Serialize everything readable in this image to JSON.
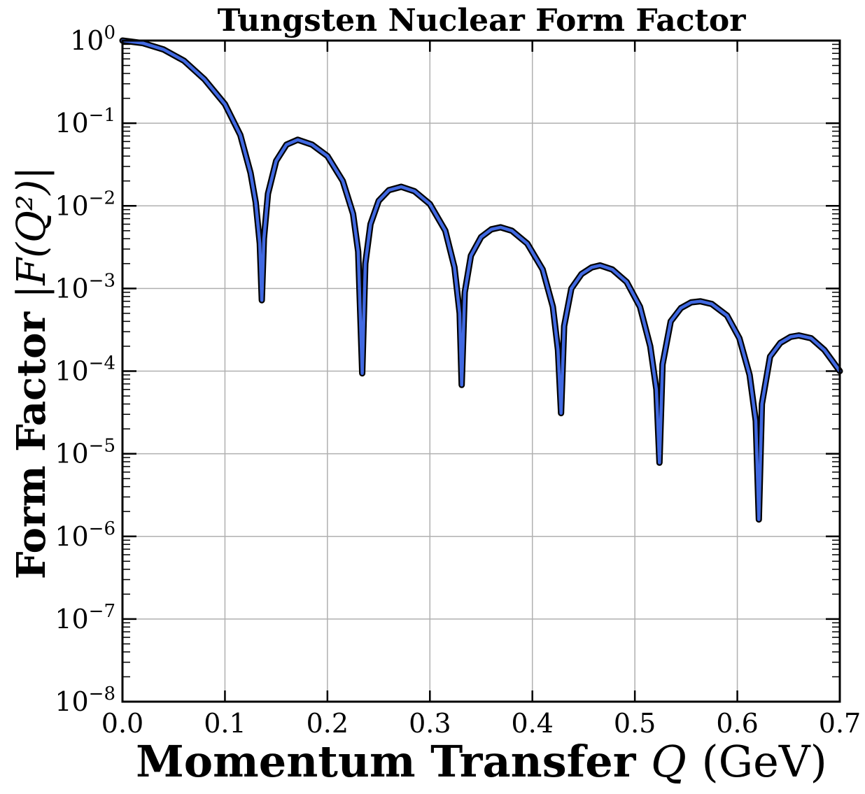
{
  "chart_data": {
    "type": "line",
    "title": "Tungsten Nuclear Form Factor",
    "xlabel": "Momentum Transfer",
    "xlabel_symbol": "Q",
    "xlabel_unit": "(GeV)",
    "ylabel": "Form Factor",
    "ylabel_symbol": "|F(Q²)|",
    "xlim": [
      0.0,
      0.7
    ],
    "ylim": [
      1e-08,
      1
    ],
    "yscale": "log",
    "grid": true,
    "xticks": [
      "0.0",
      "0.1",
      "0.2",
      "0.3",
      "0.4",
      "0.5",
      "0.6",
      "0.7"
    ],
    "yticks": [
      {
        "base": "10",
        "exp": "0"
      },
      {
        "base": "10",
        "exp": "−1"
      },
      {
        "base": "10",
        "exp": "−2"
      },
      {
        "base": "10",
        "exp": "−3"
      },
      {
        "base": "10",
        "exp": "−4"
      },
      {
        "base": "10",
        "exp": "−5"
      },
      {
        "base": "10",
        "exp": "−6"
      },
      {
        "base": "10",
        "exp": "−7"
      },
      {
        "base": "10",
        "exp": "−8"
      }
    ],
    "series": [
      {
        "color": "#4169e1",
        "edge_color": "#000000",
        "points": [
          [
            0.0,
            1.0
          ],
          [
            0.02,
            0.93
          ],
          [
            0.04,
            0.78
          ],
          [
            0.06,
            0.57
          ],
          [
            0.08,
            0.34
          ],
          [
            0.1,
            0.17
          ],
          [
            0.115,
            0.072
          ],
          [
            0.125,
            0.025
          ],
          [
            0.13,
            0.011
          ],
          [
            0.134,
            0.0035
          ],
          [
            0.136,
            0.00072
          ],
          [
            0.138,
            0.004
          ],
          [
            0.142,
            0.014
          ],
          [
            0.15,
            0.035
          ],
          [
            0.16,
            0.055
          ],
          [
            0.171,
            0.063
          ],
          [
            0.185,
            0.055
          ],
          [
            0.2,
            0.04
          ],
          [
            0.215,
            0.02
          ],
          [
            0.225,
            0.008
          ],
          [
            0.23,
            0.0028
          ],
          [
            0.234,
            9.4e-05
          ],
          [
            0.237,
            0.002
          ],
          [
            0.242,
            0.006
          ],
          [
            0.25,
            0.0115
          ],
          [
            0.26,
            0.0155
          ],
          [
            0.272,
            0.017
          ],
          [
            0.285,
            0.015
          ],
          [
            0.3,
            0.0105
          ],
          [
            0.315,
            0.005
          ],
          [
            0.324,
            0.0018
          ],
          [
            0.329,
            0.0005
          ],
          [
            0.331,
            6.8e-05
          ],
          [
            0.334,
            0.0009
          ],
          [
            0.34,
            0.0025
          ],
          [
            0.35,
            0.0042
          ],
          [
            0.36,
            0.0052
          ],
          [
            0.369,
            0.0055
          ],
          [
            0.38,
            0.005
          ],
          [
            0.395,
            0.0035
          ],
          [
            0.41,
            0.0017
          ],
          [
            0.42,
            0.0006
          ],
          [
            0.425,
            0.00018
          ],
          [
            0.428,
            3.1e-05
          ],
          [
            0.431,
            0.00035
          ],
          [
            0.438,
            0.001
          ],
          [
            0.448,
            0.0015
          ],
          [
            0.458,
            0.0018
          ],
          [
            0.466,
            0.0019
          ],
          [
            0.478,
            0.0017
          ],
          [
            0.492,
            0.0012
          ],
          [
            0.505,
            0.0006
          ],
          [
            0.515,
            0.0002
          ],
          [
            0.521,
            6e-05
          ],
          [
            0.524,
            7.8e-06
          ],
          [
            0.527,
            0.00012
          ],
          [
            0.535,
            0.0004
          ],
          [
            0.545,
            0.00058
          ],
          [
            0.555,
            0.00068
          ],
          [
            0.564,
            0.0007
          ],
          [
            0.575,
            0.00065
          ],
          [
            0.59,
            0.00047
          ],
          [
            0.602,
            0.00025
          ],
          [
            0.612,
            9e-05
          ],
          [
            0.618,
            2.5e-05
          ],
          [
            0.621,
            1.6e-06
          ],
          [
            0.624,
            4e-05
          ],
          [
            0.632,
            0.00015
          ],
          [
            0.642,
            0.00022
          ],
          [
            0.652,
            0.00026
          ],
          [
            0.66,
            0.00027
          ],
          [
            0.672,
            0.00025
          ],
          [
            0.685,
            0.00018
          ],
          [
            0.7,
            0.0001
          ]
        ]
      }
    ]
  }
}
